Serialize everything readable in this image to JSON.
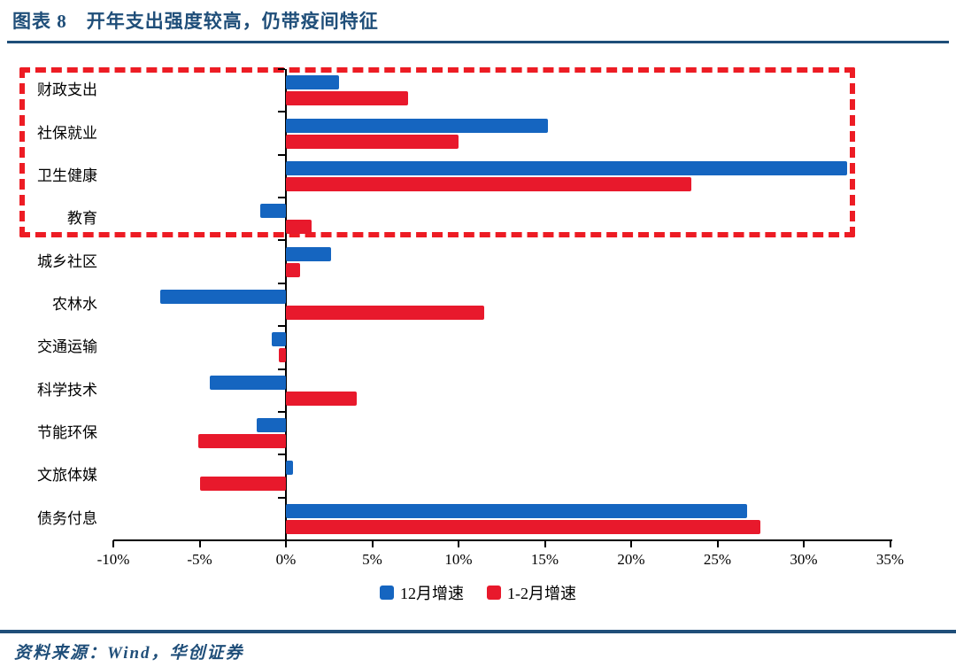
{
  "figure": {
    "title": "图表 8　开年支出强度较高，仍带疫间特征",
    "source": "资料来源：Wind，华创证券"
  },
  "colors": {
    "navy": "#1F4E79",
    "blue_series": "#1565C0",
    "red_series": "#E8192C",
    "highlight_dash": "#ED1C24",
    "axis": "#000000"
  },
  "chart_data": {
    "type": "bar",
    "orientation": "horizontal",
    "title": "开年支出强度较高，仍带疫间特征",
    "categories": [
      "财政支出",
      "社保就业",
      "卫生健康",
      "教育",
      "城乡社区",
      "农林水",
      "交通运输",
      "科学技术",
      "节能环保",
      "文旅体媒",
      "债务付息"
    ],
    "series": [
      {
        "name": "12月增速",
        "color": "#1565C0",
        "values": [
          3.1,
          15.2,
          32.5,
          -1.5,
          2.6,
          -7.3,
          -0.8,
          -4.4,
          -1.7,
          0.4,
          26.7
        ]
      },
      {
        "name": "1-2月增速",
        "color": "#E8192C",
        "values": [
          7.1,
          10.0,
          23.5,
          1.5,
          0.8,
          11.5,
          -0.4,
          4.1,
          -5.1,
          -5.0,
          27.5
        ]
      }
    ],
    "unit": "%",
    "xlim": [
      -10,
      35
    ],
    "x_tick_values": [
      -10,
      -5,
      0,
      5,
      10,
      15,
      20,
      25,
      30,
      35
    ],
    "x_tick_labels": [
      "-10%",
      "-5%",
      "0%",
      "5%",
      "10%",
      "15%",
      "20%",
      "25%",
      "30%",
      "35%"
    ],
    "grid": false,
    "legend_position": "bottom",
    "highlight_box": {
      "style": "dashed",
      "color": "#ED1C24",
      "rows_covered": [
        "财政支出",
        "社保就业",
        "卫生健康",
        "教育"
      ]
    }
  }
}
